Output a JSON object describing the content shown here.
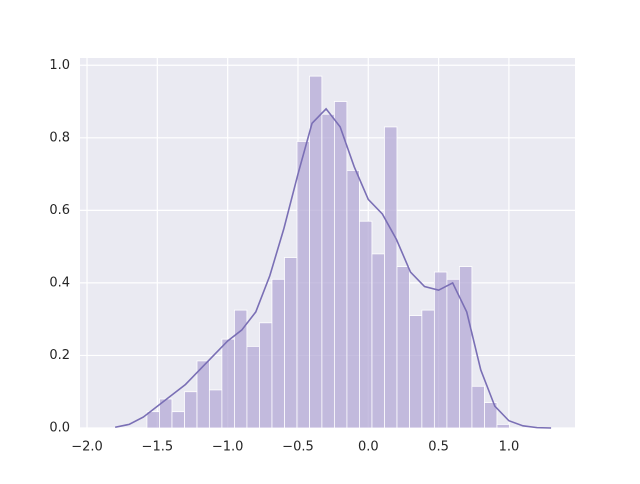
{
  "chart_data": {
    "type": "histogram",
    "bins": [
      -1.574,
      -1.485,
      -1.396,
      -1.307,
      -1.218,
      -1.13,
      -1.041,
      -0.952,
      -0.863,
      -0.774,
      -0.685,
      -0.596,
      -0.507,
      -0.418,
      -0.33,
      -0.241,
      -0.152,
      -0.063,
      0.026,
      0.115,
      0.204,
      0.293,
      0.381,
      0.47,
      0.559,
      0.648,
      0.737,
      0.826,
      0.915,
      1.004
    ],
    "values": [
      0.045,
      0.08,
      0.045,
      0.1,
      0.185,
      0.105,
      0.245,
      0.325,
      0.225,
      0.29,
      0.41,
      0.47,
      0.79,
      0.97,
      0.865,
      0.9,
      0.71,
      0.57,
      0.48,
      0.83,
      0.445,
      0.31,
      0.325,
      0.43,
      0.41,
      0.445,
      0.115,
      0.07,
      0.01
    ],
    "color": "#b4a9d6",
    "kde": {
      "color": "#7a6fb5",
      "x": [
        -1.8,
        -1.7,
        -1.6,
        -1.5,
        -1.4,
        -1.3,
        -1.2,
        -1.1,
        -1.0,
        -0.9,
        -0.8,
        -0.7,
        -0.6,
        -0.5,
        -0.4,
        -0.3,
        -0.2,
        -0.1,
        0.0,
        0.1,
        0.2,
        0.3,
        0.4,
        0.5,
        0.6,
        0.7,
        0.8,
        0.9,
        1.0,
        1.1,
        1.2,
        1.3
      ],
      "values": [
        0.002,
        0.01,
        0.03,
        0.06,
        0.09,
        0.12,
        0.16,
        0.2,
        0.24,
        0.27,
        0.32,
        0.42,
        0.55,
        0.7,
        0.84,
        0.88,
        0.83,
        0.72,
        0.63,
        0.59,
        0.52,
        0.43,
        0.39,
        0.38,
        0.4,
        0.32,
        0.16,
        0.06,
        0.02,
        0.006,
        0.001,
        0
      ]
    },
    "xlim": [
      -2.05,
      1.47
    ],
    "ylim": [
      0,
      1.02
    ],
    "xticks": [
      {
        "value": -2.0,
        "label": "−2.0"
      },
      {
        "value": -1.5,
        "label": "−1.5"
      },
      {
        "value": -1.0,
        "label": "−1.0"
      },
      {
        "value": -0.5,
        "label": "−0.5"
      },
      {
        "value": 0.0,
        "label": "0.0"
      },
      {
        "value": 0.5,
        "label": "0.5"
      },
      {
        "value": 1.0,
        "label": "1.0"
      }
    ],
    "yticks": [
      {
        "value": 0.0,
        "label": "0.0"
      },
      0.2,
      0.4,
      0.6,
      0.8,
      {
        "value": 1.0,
        "label": "1.0"
      }
    ],
    "grid": true
  }
}
